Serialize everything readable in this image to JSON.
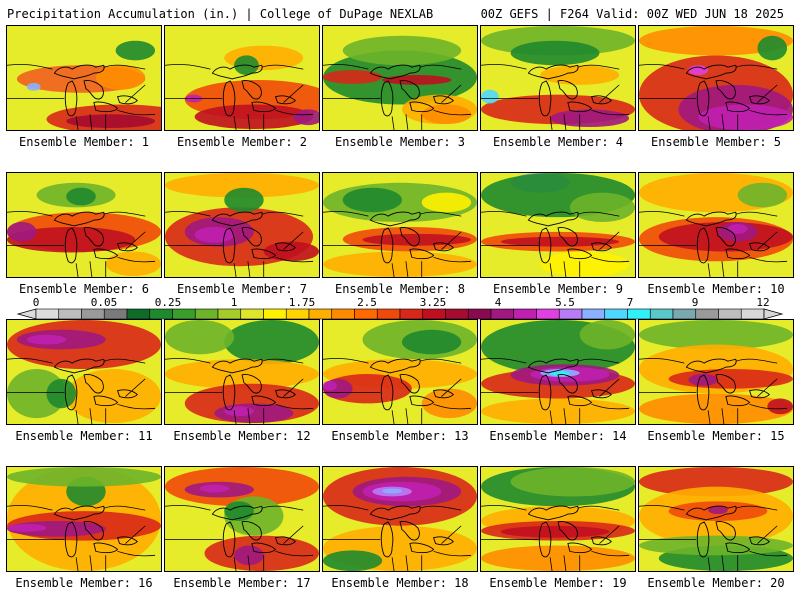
{
  "header": {
    "left": "Precipitation Accumulation (in.) | College of DuPage NEXLAB",
    "right": "00Z GEFS | F264 Valid: 00Z WED JUN 18 2025"
  },
  "colorbar": {
    "labels": [
      "0",
      "0.05",
      "0.25",
      "1",
      "1.75",
      "2.5",
      "3.25",
      "4",
      "5.5",
      "7",
      "9",
      "12"
    ],
    "colors": [
      "#dcdcdc",
      "#bdbdbd",
      "#9a9a9a",
      "#7a7a7a",
      "#0e6b2a",
      "#1f8a2d",
      "#3a9e2a",
      "#6db42a",
      "#a6cc2a",
      "#dfe62a",
      "#fff200",
      "#ffd400",
      "#ffae00",
      "#ff8c00",
      "#ff6a00",
      "#f04a0a",
      "#d8281a",
      "#c01020",
      "#a40c30",
      "#8a0a50",
      "#a01880",
      "#c020b0",
      "#e040e0",
      "#b87cf5",
      "#8ab0ff",
      "#4fd8ff",
      "#30f0f8",
      "#5ac8c8",
      "#7aa8b0",
      "#9a9a9a",
      "#bdbdbd",
      "#d8d8d8"
    ]
  },
  "members": [
    {
      "caption": "Ensemble Member: 1"
    },
    {
      "caption": "Ensemble Member: 2"
    },
    {
      "caption": "Ensemble Member: 3"
    },
    {
      "caption": "Ensemble Member: 4"
    },
    {
      "caption": "Ensemble Member: 5"
    },
    {
      "caption": "Ensemble Member: 6"
    },
    {
      "caption": "Ensemble Member: 7"
    },
    {
      "caption": "Ensemble Member: 8"
    },
    {
      "caption": "Ensemble Member: 9"
    },
    {
      "caption": "Ensemble Member: 10"
    },
    {
      "caption": "Ensemble Member: 11"
    },
    {
      "caption": "Ensemble Member: 12"
    },
    {
      "caption": "Ensemble Member: 13"
    },
    {
      "caption": "Ensemble Member: 14"
    },
    {
      "caption": "Ensemble Member: 15"
    },
    {
      "caption": "Ensemble Member: 16"
    },
    {
      "caption": "Ensemble Member: 17"
    },
    {
      "caption": "Ensemble Member: 18"
    },
    {
      "caption": "Ensemble Member: 19"
    },
    {
      "caption": "Ensemble Member: 20"
    }
  ]
}
